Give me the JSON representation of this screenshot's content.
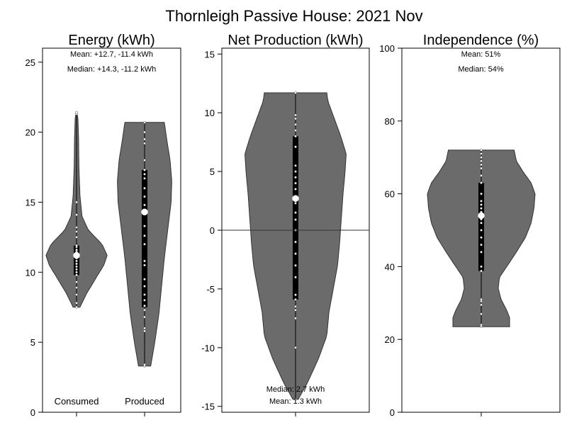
{
  "title": "Thornleigh Passive House:  2021 Nov",
  "colors": {
    "violin_fill": "#6b6b6b",
    "violin_stroke": "#333333",
    "box": "#000000",
    "points": "#ffffff",
    "axis": "#000000"
  },
  "chart_data": [
    {
      "type": "violin",
      "title": "Energy (kWh)",
      "ylim": [
        0,
        26
      ],
      "yticks": [
        0,
        5,
        10,
        15,
        20,
        25
      ],
      "grid": false,
      "annotations": [
        "Mean: +12.7, -11.4 kWh",
        "Median: +14.3, -11.2 kWh"
      ],
      "series": [
        {
          "name": "Consumed",
          "min": 7.5,
          "q1": 9.8,
          "median": 11.2,
          "q3": 11.9,
          "max": 21.4,
          "points": [
            7.5,
            7.8,
            8.4,
            8.9,
            9.3,
            9.8,
            10.0,
            10.2,
            10.4,
            10.6,
            10.8,
            11.0,
            11.1,
            11.2,
            11.3,
            11.4,
            11.5,
            11.6,
            11.8,
            11.9,
            12.5,
            12.9,
            13.2,
            14.1,
            15.0,
            21.3,
            21.4
          ],
          "density": [
            [
              7.5,
              0.1
            ],
            [
              8.5,
              0.3
            ],
            [
              9.5,
              0.55
            ],
            [
              10.5,
              0.8
            ],
            [
              11.2,
              0.9
            ],
            [
              12.0,
              0.75
            ],
            [
              13.0,
              0.35
            ],
            [
              14.0,
              0.16
            ],
            [
              15.5,
              0.1
            ],
            [
              17.5,
              0.07
            ],
            [
              19.5,
              0.06
            ],
            [
              21.0,
              0.04
            ],
            [
              21.4,
              0.01
            ]
          ]
        },
        {
          "name": "Produced",
          "min": 3.3,
          "q1": 7.5,
          "median": 14.3,
          "q3": 17.3,
          "max": 20.7,
          "points": [
            3.3,
            3.4,
            5.8,
            6.0,
            6.8,
            7.3,
            7.6,
            8.0,
            8.4,
            9.0,
            9.5,
            10.5,
            10.8,
            12.0,
            12.6,
            13.3,
            14.3,
            14.8,
            15.4,
            16.0,
            16.7,
            17.0,
            17.3,
            18.0,
            19.2,
            19.5,
            20.0,
            20.7
          ],
          "density": [
            [
              3.3,
              0.18
            ],
            [
              5.0,
              0.3
            ],
            [
              7.0,
              0.42
            ],
            [
              9.0,
              0.5
            ],
            [
              11.0,
              0.58
            ],
            [
              13.0,
              0.68
            ],
            [
              15.0,
              0.78
            ],
            [
              16.5,
              0.8
            ],
            [
              18.0,
              0.75
            ],
            [
              19.5,
              0.65
            ],
            [
              20.7,
              0.58
            ]
          ]
        }
      ]
    },
    {
      "type": "violin",
      "title": "Net Production (kWh)",
      "ylim": [
        -15.5,
        15.5
      ],
      "yticks": [
        -15,
        -10,
        -5,
        0,
        5,
        10,
        15
      ],
      "grid": false,
      "reference_line": 0,
      "annotations": [
        "Median: 2.7 kWh",
        "Mean: 1.3 kWh"
      ],
      "series": [
        {
          "name": "",
          "min": -14.4,
          "q1": -5.9,
          "median": 2.7,
          "q3": 8.0,
          "max": 11.7,
          "points": [
            -14.4,
            -10.0,
            -7.5,
            -6.8,
            -6.5,
            -5.9,
            -5.5,
            -4.0,
            -3.0,
            -2.0,
            -1.0,
            0.0,
            0.9,
            1.5,
            2.3,
            2.7,
            3.5,
            4.0,
            4.5,
            5.0,
            5.5,
            7.1,
            8.0,
            8.5,
            9.0,
            9.5,
            9.8,
            11.7
          ],
          "density": [
            [
              -14.4,
              0.05
            ],
            [
              -13.0,
              0.22
            ],
            [
              -11.0,
              0.42
            ],
            [
              -9.0,
              0.58
            ],
            [
              -7.0,
              0.62
            ],
            [
              -5.0,
              0.7
            ],
            [
              -3.0,
              0.78
            ],
            [
              -1.0,
              0.82
            ],
            [
              1.0,
              0.85
            ],
            [
              3.0,
              0.88
            ],
            [
              5.0,
              0.92
            ],
            [
              6.5,
              0.94
            ],
            [
              8.0,
              0.84
            ],
            [
              9.5,
              0.72
            ],
            [
              11.0,
              0.6
            ],
            [
              11.7,
              0.58
            ]
          ]
        }
      ]
    },
    {
      "type": "violin",
      "title": "Independence (%)",
      "ylim": [
        0,
        100
      ],
      "yticks": [
        0,
        20,
        40,
        60,
        80,
        100
      ],
      "grid": false,
      "annotations": [
        "Mean: 51%",
        "Median: 54%"
      ],
      "series": [
        {
          "name": "",
          "min": 23.5,
          "q1": 38.8,
          "median": 54.0,
          "q3": 63.0,
          "max": 72.0,
          "points": [
            23.5,
            24.0,
            27.0,
            29.5,
            30.5,
            31.0,
            38.8,
            40.0,
            44.0,
            46.0,
            48.0,
            50.0,
            52.0,
            53.0,
            54.0,
            55.0,
            56.0,
            57.0,
            58.0,
            60.0,
            63.0,
            65.0,
            67.0,
            68.0,
            69.0,
            70.0,
            71.0,
            72.0
          ],
          "density": [
            [
              23.5,
              0.5
            ],
            [
              26.0,
              0.5
            ],
            [
              28.0,
              0.45
            ],
            [
              31.0,
              0.35
            ],
            [
              34.0,
              0.3
            ],
            [
              37.0,
              0.32
            ],
            [
              40.0,
              0.45
            ],
            [
              44.0,
              0.62
            ],
            [
              48.0,
              0.78
            ],
            [
              52.0,
              0.88
            ],
            [
              56.0,
              0.93
            ],
            [
              60.0,
              0.95
            ],
            [
              63.0,
              0.88
            ],
            [
              66.0,
              0.74
            ],
            [
              69.0,
              0.62
            ],
            [
              72.0,
              0.58
            ]
          ]
        }
      ]
    }
  ]
}
